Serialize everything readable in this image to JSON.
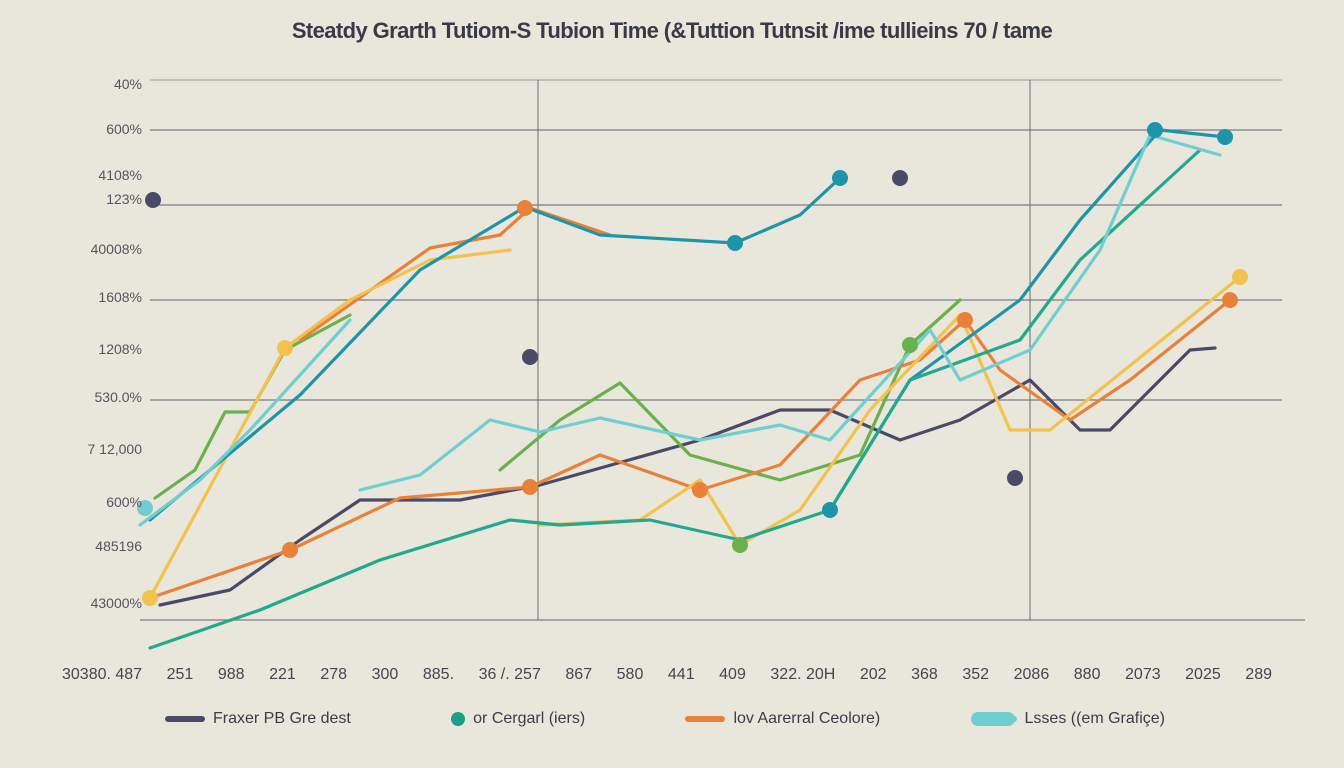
{
  "chart_data": {
    "type": "line",
    "title": "Steatdy Grarth Tutiom-S Tubion Time (&Tuttion Tutnsit /ime tullieins 70 / tame",
    "xlabel": "",
    "ylabel": "",
    "xlim": [
      0,
      115
    ],
    "ylim": [
      0,
      108
    ],
    "grid": {
      "horizontal": [
        108,
        98,
        83,
        64,
        44,
        0
      ],
      "vertical": [
        39.8,
        89
      ]
    },
    "y_tick_labels": [
      "40%",
      "600%",
      "4108%",
      "123%",
      "40008%",
      "1608%",
      "1208%",
      "530.0%",
      "7 12,000",
      "600%",
      "485196",
      "43000%"
    ],
    "x_tick_labels": [
      "30380. 487",
      "251",
      "988",
      "221",
      "278",
      "300",
      "885.",
      "36 /. 257",
      "867",
      "580",
      "441",
      "409",
      "322. 20H",
      "202",
      "368",
      "352",
      "2086",
      "880",
      "2073",
      "2025",
      "289"
    ],
    "legend": [
      {
        "label": "Fraxer PB Gre dest",
        "color": "#4a4a68",
        "marker": "line"
      },
      {
        "label": "or Cergarl (iers)",
        "color": "#1f9e86",
        "marker": "dot"
      },
      {
        "label": "lov Aarerral Ceolore)",
        "color": "#e8813a",
        "marker": "line"
      },
      {
        "label": "Lsses ((em Grafiçe)",
        "color": "#6fcfd0",
        "marker": "dot-line"
      }
    ],
    "legend_position": "bottom",
    "series": [
      {
        "name": "navy",
        "color": "#4a4a68",
        "segments": [
          [
            [
              2,
              3
            ],
            [
              9,
              6
            ],
            [
              16,
              16
            ],
            [
              22,
              24
            ],
            [
              32,
              24
            ],
            [
              40,
              27
            ],
            [
              56,
              36
            ],
            [
              64,
              42
            ],
            [
              69,
              42
            ],
            [
              76,
              36
            ],
            [
              82,
              40
            ],
            [
              89,
              48
            ],
            [
              94,
              38
            ],
            [
              97,
              38
            ],
            [
              100,
              44
            ],
            [
              105,
              54
            ],
            [
              107.5,
              54.4
            ]
          ]
        ]
      },
      {
        "name": "green",
        "color": "#6ab04c",
        "segments": [
          [
            [
              1.5,
              24.4
            ],
            [
              5.5,
              30
            ],
            [
              8.5,
              41.6
            ],
            [
              11,
              41.6
            ],
            [
              14.5,
              54
            ],
            [
              21,
              61
            ]
          ],
          [
            [
              36,
              30
            ],
            [
              42,
              40
            ],
            [
              48,
              47.4
            ],
            [
              55,
              33
            ],
            [
              64,
              28
            ],
            [
              72,
              33
            ],
            [
              77,
              55
            ],
            [
              82,
              64
            ]
          ]
        ]
      },
      {
        "name": "orange",
        "color": "#e8813a",
        "segments": [
          [
            [
              16,
              56
            ],
            [
              29,
              74.4
            ],
            [
              36,
              77
            ],
            [
              39,
              82.4
            ],
            [
              47,
              77
            ]
          ],
          [
            [
              1,
              4.4
            ],
            [
              15,
              14
            ],
            [
              26,
              24.4
            ],
            [
              39,
              26.6
            ],
            [
              46,
              33
            ],
            [
              56,
              26
            ],
            [
              64,
              31
            ],
            [
              72,
              48
            ],
            [
              78,
              52
            ],
            [
              82.5,
              60
            ],
            [
              86,
              50
            ],
            [
              93,
              40
            ],
            [
              99,
              48
            ],
            [
              109,
              64
            ]
          ]
        ]
      },
      {
        "name": "yellow",
        "color": "#f2c14e",
        "segments": [
          [
            [
              1,
              4.4
            ],
            [
              14.5,
              54.4
            ],
            [
              21,
              64
            ],
            [
              29,
              72
            ],
            [
              37,
              74
            ]
          ],
          [
            [
              40,
              19
            ],
            [
              50,
              20
            ],
            [
              56,
              28
            ],
            [
              60,
              15
            ],
            [
              66,
              22
            ],
            [
              73,
              42
            ],
            [
              82,
              61
            ],
            [
              87,
              38
            ],
            [
              91,
              38
            ],
            [
              110,
              68.6
            ]
          ]
        ]
      },
      {
        "name": "dark-teal",
        "color": "#1f94a8",
        "segments": [
          [
            [
              1,
              20
            ],
            [
              16,
              45
            ],
            [
              28,
              70
            ],
            [
              38.5,
              82.6
            ],
            [
              46,
              77
            ],
            [
              59.5,
              75.4
            ],
            [
              66,
              81
            ],
            [
              70,
              88.4
            ]
          ],
          [
            [
              69,
              22
            ],
            [
              77,
              48
            ],
            [
              88,
              64
            ],
            [
              94,
              80
            ],
            [
              102,
              98
            ],
            [
              108.5,
              96.6
            ]
          ]
        ]
      },
      {
        "name": "teal-green",
        "color": "#22a88f",
        "segments": [
          [
            [
              1,
              -5.6
            ],
            [
              12,
              2
            ],
            [
              24,
              12
            ],
            [
              37,
              20
            ],
            [
              42,
              19
            ],
            [
              51,
              20
            ],
            [
              60,
              16
            ],
            [
              69,
              22
            ],
            [
              77,
              48
            ],
            [
              88,
              56
            ],
            [
              94,
              72
            ],
            [
              106,
              94
            ]
          ]
        ]
      },
      {
        "name": "light-cyan",
        "color": "#6fcfd0",
        "segments": [
          [
            [
              0,
              19
            ],
            [
              6,
              28
            ],
            [
              11,
              38
            ],
            [
              21,
              60
            ]
          ],
          [
            [
              22,
              26
            ],
            [
              28,
              29
            ],
            [
              35,
              40
            ],
            [
              40,
              37.6
            ],
            [
              46,
              40.4
            ],
            [
              56,
              36
            ],
            [
              64,
              39
            ],
            [
              69,
              36
            ],
            [
              79,
              58
            ],
            [
              82,
              48
            ],
            [
              89,
              54
            ],
            [
              96,
              74
            ],
            [
              101,
              97
            ],
            [
              108,
              93
            ]
          ]
        ]
      }
    ],
    "markers": [
      {
        "x": 1.3,
        "y": 84,
        "color": "#4a4a68"
      },
      {
        "x": 39,
        "y": 52.6,
        "color": "#4a4a68"
      },
      {
        "x": 76,
        "y": 88.4,
        "color": "#4a4a68"
      },
      {
        "x": 87.5,
        "y": 28.4,
        "color": "#4a4a68"
      },
      {
        "x": 38.5,
        "y": 82.4,
        "color": "#e8813a"
      },
      {
        "x": 15,
        "y": 14,
        "color": "#e8813a"
      },
      {
        "x": 39,
        "y": 26.6,
        "color": "#e8813a"
      },
      {
        "x": 56,
        "y": 26,
        "color": "#e8813a"
      },
      {
        "x": 82.5,
        "y": 60,
        "color": "#e8813a"
      },
      {
        "x": 109,
        "y": 64,
        "color": "#e8813a"
      },
      {
        "x": 14.5,
        "y": 54.4,
        "color": "#f2c14e"
      },
      {
        "x": 1,
        "y": 4.4,
        "color": "#f2c14e"
      },
      {
        "x": 110,
        "y": 68.6,
        "color": "#f2c14e"
      },
      {
        "x": 60,
        "y": 15,
        "color": "#6ab04c"
      },
      {
        "x": 77,
        "y": 55,
        "color": "#6ab04c"
      },
      {
        "x": 0.5,
        "y": 22.4,
        "color": "#6fcfd0"
      },
      {
        "x": 70,
        "y": 88.4,
        "color": "#1f94a8"
      },
      {
        "x": 59.5,
        "y": 75.4,
        "color": "#1f94a8"
      },
      {
        "x": 69,
        "y": 22,
        "color": "#1f94a8"
      },
      {
        "x": 101.5,
        "y": 98,
        "color": "#1f94a8"
      },
      {
        "x": 108.5,
        "y": 96.6,
        "color": "#1f94a8"
      }
    ]
  }
}
